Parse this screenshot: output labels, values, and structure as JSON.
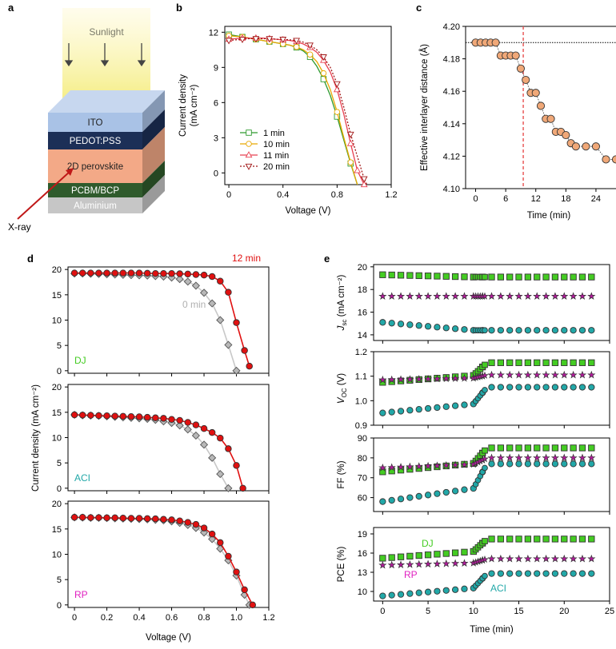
{
  "panels": {
    "a": {
      "label": "a",
      "sunlight": "Sunlight",
      "xray": "X-ray",
      "layers": [
        {
          "name": "ITO",
          "color": "#a9c2e6"
        },
        {
          "name": "PEDOT:PSS",
          "color": "#1c2f57"
        },
        {
          "name": "2D perovskite",
          "color": "#f3a987"
        },
        {
          "name": "PCBM/BCP",
          "color": "#2f5b2c"
        },
        {
          "name": "Aluminium",
          "color": "#c6c6c6"
        }
      ]
    },
    "b": {
      "label": "b"
    },
    "c": {
      "label": "c"
    },
    "d": {
      "label": "d"
    },
    "e": {
      "label": "e"
    }
  },
  "chart_data": [
    {
      "id": "b",
      "type": "line",
      "xlabel": "Voltage (V)",
      "ylabel": [
        "Current density",
        "(mA cm⁻²)"
      ],
      "xlim": [
        -0.03,
        1.2
      ],
      "ylim": [
        -1,
        12.5
      ],
      "xticks": [
        "0",
        "0.4",
        "0.8",
        "1.2"
      ],
      "yticks": [
        "0",
        "3",
        "6",
        "9",
        "12"
      ],
      "series": [
        {
          "name": "1 min",
          "color": "#2f9a2f",
          "marker": "square",
          "linestyle": "solid",
          "x": [
            0,
            0.05,
            0.1,
            0.15,
            0.2,
            0.25,
            0.3,
            0.35,
            0.4,
            0.45,
            0.5,
            0.55,
            0.6,
            0.65,
            0.7,
            0.75,
            0.8,
            0.85,
            0.9,
            0.95
          ],
          "y": [
            11.8,
            11.7,
            11.6,
            11.5,
            11.4,
            11.3,
            11.2,
            11.1,
            11.0,
            10.9,
            10.7,
            10.4,
            9.9,
            9.1,
            8.0,
            6.6,
            4.8,
            2.8,
            0.8,
            -1.0
          ]
        },
        {
          "name": "10 min",
          "color": "#e8a800",
          "marker": "circle",
          "linestyle": "solid",
          "x": [
            0,
            0.05,
            0.1,
            0.15,
            0.2,
            0.25,
            0.3,
            0.35,
            0.4,
            0.45,
            0.5,
            0.55,
            0.6,
            0.65,
            0.7,
            0.75,
            0.8,
            0.85,
            0.9,
            0.95
          ],
          "y": [
            11.7,
            11.65,
            11.6,
            11.5,
            11.4,
            11.3,
            11.2,
            11.1,
            11.0,
            10.9,
            10.75,
            10.5,
            10.1,
            9.5,
            8.5,
            7.1,
            5.2,
            3.0,
            0.9,
            -1.0
          ]
        },
        {
          "name": "11 min",
          "color": "#e84050",
          "marker": "triangle-up",
          "linestyle": "solid",
          "x": [
            0,
            0.05,
            0.1,
            0.15,
            0.2,
            0.25,
            0.3,
            0.35,
            0.4,
            0.45,
            0.5,
            0.55,
            0.6,
            0.65,
            0.7,
            0.75,
            0.8,
            0.85,
            0.9,
            0.95,
            1.0
          ],
          "y": [
            11.4,
            11.45,
            11.5,
            11.5,
            11.5,
            11.5,
            11.45,
            11.4,
            11.35,
            11.3,
            11.2,
            11.0,
            10.7,
            10.3,
            9.6,
            8.6,
            7.1,
            5.0,
            2.5,
            0.2,
            -1.0
          ]
        },
        {
          "name": "20 min",
          "color": "#a01515",
          "marker": "triangle-down",
          "linestyle": "dotted",
          "x": [
            0,
            0.05,
            0.1,
            0.15,
            0.2,
            0.25,
            0.3,
            0.35,
            0.4,
            0.45,
            0.5,
            0.55,
            0.6,
            0.65,
            0.7,
            0.75,
            0.8,
            0.85,
            0.9,
            0.95,
            1.0,
            1.02
          ],
          "y": [
            11.3,
            11.35,
            11.4,
            11.45,
            11.45,
            11.45,
            11.45,
            11.4,
            11.4,
            11.35,
            11.3,
            11.15,
            10.9,
            10.5,
            9.9,
            9.0,
            7.6,
            5.6,
            3.3,
            1.4,
            -0.5,
            -1.0
          ]
        }
      ]
    },
    {
      "id": "c",
      "type": "scatter",
      "xlabel": "Time (min)",
      "ylabel": "Effective interlayer distance (Å)",
      "xlim": [
        -2,
        28
      ],
      "ylim": [
        4.1,
        4.2
      ],
      "xticks": [
        "0",
        "6",
        "12",
        "18",
        "24"
      ],
      "yticks": [
        "4.10",
        "4.12",
        "4.14",
        "4.16",
        "4.18",
        "4.20"
      ],
      "hline": 4.19,
      "vline": 9.5,
      "series": [
        {
          "color": "#f0a878",
          "x": [
            0,
            1,
            2,
            3,
            4,
            5,
            6,
            7,
            8,
            9,
            10,
            11,
            12,
            13,
            14,
            15,
            16,
            17,
            18,
            19,
            20,
            22,
            24,
            26,
            28
          ],
          "y": [
            4.19,
            4.19,
            4.19,
            4.19,
            4.19,
            4.182,
            4.182,
            4.182,
            4.182,
            4.174,
            4.167,
            4.159,
            4.159,
            4.151,
            4.143,
            4.143,
            4.135,
            4.135,
            4.133,
            4.128,
            4.126,
            4.126,
            4.126,
            4.118,
            4.118
          ]
        }
      ]
    },
    {
      "id": "d",
      "type": "line",
      "xlabel": "Voltage (V)",
      "ylabel": "Current density (mA cm⁻²)",
      "xlim": [
        -0.04,
        1.2
      ],
      "xticks": [
        "0",
        "0.2",
        "0.4",
        "0.6",
        "0.8",
        "1.0",
        "1.2"
      ],
      "subplots": [
        {
          "label": "DJ",
          "label_color": "#44cc22",
          "ylim": [
            -0.5,
            20.5
          ],
          "yticks": [
            "0",
            "5",
            "10",
            "15",
            "20"
          ],
          "annotations": [
            {
              "text": "12 min",
              "color": "#e01010"
            },
            {
              "text": "0 min",
              "color": "#b0b0b0"
            }
          ],
          "series": [
            {
              "name": "12 min",
              "color": "#e01010",
              "marker": "circle",
              "x": [
                0,
                0.05,
                0.1,
                0.15,
                0.2,
                0.25,
                0.3,
                0.35,
                0.4,
                0.45,
                0.5,
                0.55,
                0.6,
                0.65,
                0.7,
                0.75,
                0.8,
                0.85,
                0.9,
                0.95,
                1.0,
                1.05,
                1.08
              ],
              "y": [
                19.3,
                19.3,
                19.3,
                19.3,
                19.3,
                19.3,
                19.3,
                19.3,
                19.3,
                19.25,
                19.2,
                19.2,
                19.2,
                19.15,
                19.1,
                19.0,
                18.9,
                18.6,
                17.7,
                15.5,
                9.5,
                4.0,
                0.9
              ]
            },
            {
              "name": "0 min",
              "color": "#999999",
              "marker": "diamond",
              "x": [
                0,
                0.05,
                0.1,
                0.15,
                0.2,
                0.25,
                0.3,
                0.35,
                0.4,
                0.45,
                0.5,
                0.55,
                0.6,
                0.65,
                0.7,
                0.75,
                0.8,
                0.85,
                0.9,
                0.95,
                1.0
              ],
              "y": [
                19.2,
                19.2,
                19.15,
                19.1,
                19.05,
                19.0,
                18.95,
                18.9,
                18.85,
                18.8,
                18.7,
                18.6,
                18.4,
                18.1,
                17.6,
                16.8,
                15.4,
                13.3,
                10.0,
                5.1,
                0.0
              ]
            }
          ]
        },
        {
          "label": "ACI",
          "label_color": "#22a8a8",
          "ylim": [
            -0.5,
            20.5
          ],
          "yticks": [
            "0",
            "5",
            "10",
            "15",
            "20"
          ],
          "series": [
            {
              "name": "12 min",
              "color": "#e01010",
              "marker": "circle",
              "x": [
                0,
                0.05,
                0.1,
                0.15,
                0.2,
                0.25,
                0.3,
                0.35,
                0.4,
                0.45,
                0.5,
                0.55,
                0.6,
                0.65,
                0.7,
                0.75,
                0.8,
                0.85,
                0.9,
                0.95,
                1.0,
                1.04
              ],
              "y": [
                14.5,
                14.45,
                14.4,
                14.35,
                14.3,
                14.25,
                14.2,
                14.15,
                14.1,
                14.0,
                13.9,
                13.8,
                13.6,
                13.4,
                13.0,
                12.5,
                11.8,
                11.0,
                9.9,
                7.8,
                4.5,
                0.0
              ]
            },
            {
              "name": "0 min",
              "color": "#999999",
              "marker": "diamond",
              "x": [
                0,
                0.05,
                0.1,
                0.15,
                0.2,
                0.25,
                0.3,
                0.35,
                0.4,
                0.45,
                0.5,
                0.55,
                0.6,
                0.65,
                0.7,
                0.75,
                0.8,
                0.85,
                0.9,
                0.95
              ],
              "y": [
                14.5,
                14.4,
                14.35,
                14.3,
                14.2,
                14.1,
                14.0,
                13.9,
                13.8,
                13.7,
                13.5,
                13.2,
                12.9,
                12.4,
                11.6,
                10.4,
                8.6,
                6.0,
                2.8,
                0.0
              ]
            }
          ]
        },
        {
          "label": "RP",
          "label_color": "#e020c0",
          "ylim": [
            -0.5,
            20.5
          ],
          "yticks": [
            "0",
            "5",
            "10",
            "15",
            "20"
          ],
          "series": [
            {
              "name": "12 min",
              "color": "#e01010",
              "marker": "circle",
              "x": [
                0,
                0.05,
                0.1,
                0.15,
                0.2,
                0.25,
                0.3,
                0.35,
                0.4,
                0.45,
                0.5,
                0.55,
                0.6,
                0.65,
                0.7,
                0.75,
                0.8,
                0.85,
                0.9,
                0.95,
                1.0,
                1.05,
                1.1
              ],
              "y": [
                17.3,
                17.3,
                17.25,
                17.25,
                17.2,
                17.2,
                17.15,
                17.1,
                17.1,
                17.05,
                17.0,
                16.9,
                16.8,
                16.6,
                16.3,
                15.9,
                15.2,
                14.0,
                12.3,
                9.6,
                6.5,
                3.0,
                0.0
              ]
            },
            {
              "name": "0 min",
              "color": "#999999",
              "marker": "diamond",
              "x": [
                0,
                0.05,
                0.1,
                0.15,
                0.2,
                0.25,
                0.3,
                0.35,
                0.4,
                0.45,
                0.5,
                0.55,
                0.6,
                0.65,
                0.7,
                0.75,
                0.8,
                0.85,
                0.9,
                0.95,
                1.0,
                1.05,
                1.08
              ],
              "y": [
                17.3,
                17.25,
                17.2,
                17.2,
                17.15,
                17.1,
                17.05,
                17.0,
                16.95,
                16.9,
                16.8,
                16.7,
                16.5,
                16.2,
                15.8,
                15.2,
                14.3,
                13.0,
                11.1,
                8.8,
                5.8,
                2.0,
                0.0
              ]
            }
          ]
        }
      ]
    },
    {
      "id": "e",
      "type": "scatter",
      "xlabel": "Time (min)",
      "xlim": [
        -1,
        25
      ],
      "xticks": [
        "0",
        "5",
        "10",
        "15",
        "20",
        "25"
      ],
      "series_colors": {
        "DJ": "#44cc22",
        "RP": "#b01a9a",
        "ACI": "#22a8a8"
      },
      "subplots": [
        {
          "ylabel": [
            "J",
            "sc",
            " (mA cm⁻²)"
          ],
          "ylim": [
            13.5,
            20.2
          ],
          "yticks": [
            "14",
            "16",
            "18",
            "20"
          ],
          "series": [
            {
              "name": "DJ",
              "marker": "square",
              "step": 11,
              "v0": 19.3,
              "v1": 19.1,
              "jump": 0
            },
            {
              "name": "RP",
              "marker": "star",
              "step": 11,
              "v0": 17.4,
              "v1": 17.4,
              "jump": 0
            },
            {
              "name": "ACI",
              "marker": "circle",
              "step": 11,
              "v0": 15.1,
              "v1": 14.4,
              "jump": 0
            }
          ]
        },
        {
          "ylabel": [
            "V",
            "OC",
            " (V)"
          ],
          "ylim": [
            0.9,
            1.2
          ],
          "yticks": [
            "0.9",
            "1.0",
            "1.1",
            "1.2"
          ],
          "series": [
            {
              "name": "DJ",
              "marker": "square",
              "step": 11,
              "v0": 1.075,
              "v1": 1.155,
              "jump": 1
            },
            {
              "name": "RP",
              "marker": "star",
              "step": 11,
              "v0": 1.085,
              "v1": 1.105,
              "jump": 1
            },
            {
              "name": "ACI",
              "marker": "circle",
              "step": 11,
              "v0": 0.95,
              "v1": 1.055,
              "jump": 1
            }
          ]
        },
        {
          "ylabel": [
            "FF (%)"
          ],
          "ylim": [
            53,
            90
          ],
          "yticks": [
            "60",
            "70",
            "80",
            "90"
          ],
          "series": [
            {
              "name": "DJ",
              "marker": "square",
              "step": 11,
              "v0": 73,
              "v1": 85,
              "jump": 1
            },
            {
              "name": "RP",
              "marker": "star",
              "step": 11,
              "v0": 75,
              "v1": 80,
              "jump": 1
            },
            {
              "name": "ACI",
              "marker": "circle",
              "step": 11,
              "v0": 58,
              "v1": 77,
              "jump": 1
            }
          ]
        },
        {
          "ylabel": [
            "PCE (%)"
          ],
          "ylim": [
            8.5,
            20
          ],
          "yticks": [
            "10",
            "13",
            "16",
            "19"
          ],
          "labels": [
            {
              "text": "DJ",
              "color": "#44cc22"
            },
            {
              "text": "RP",
              "color": "#e020c0"
            },
            {
              "text": "ACI",
              "color": "#22a8a8"
            }
          ],
          "series": [
            {
              "name": "DJ",
              "marker": "square",
              "step": 11,
              "v0": 15.2,
              "v1": 18.2,
              "jump": 1
            },
            {
              "name": "RP",
              "marker": "star",
              "step": 11,
              "v0": 14.1,
              "v1": 15.1,
              "jump": 1
            },
            {
              "name": "ACI",
              "marker": "circle",
              "step": 11,
              "v0": 9.3,
              "v1": 12.8,
              "jump": 1
            }
          ]
        }
      ]
    }
  ]
}
